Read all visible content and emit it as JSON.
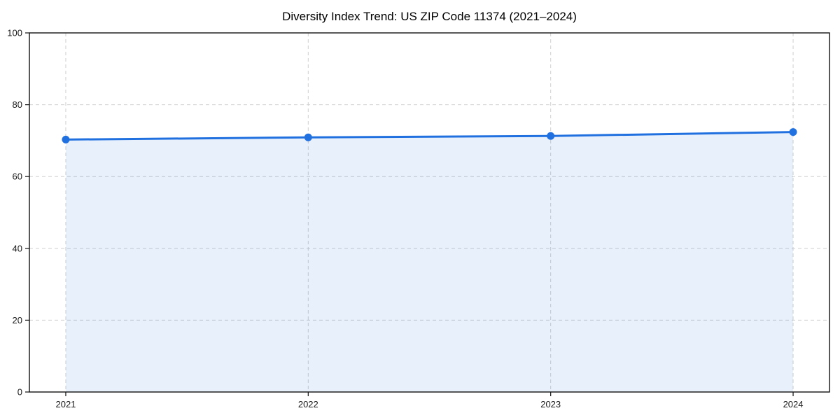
{
  "chart_data": {
    "type": "line",
    "title": "Diversity Index Trend: US ZIP Code 11374 (2021–2024)",
    "x": [
      "2021",
      "2022",
      "2023",
      "2024"
    ],
    "series": [
      {
        "name": "Diversity Index",
        "values": [
          70.3,
          70.9,
          71.3,
          72.4
        ]
      }
    ],
    "xlabel": "",
    "ylabel": "",
    "ylim": [
      0,
      100
    ],
    "yticks": [
      0,
      20,
      40,
      60,
      80,
      100
    ],
    "xticks": [
      "2021",
      "2022",
      "2023",
      "2024"
    ],
    "grid": "dashed",
    "legend": "none",
    "marker": "circle",
    "fill_under_line": true,
    "fill_opacity": 0.1,
    "line_color": "#2070e0",
    "grid_color": "#cfcfcf",
    "axis_color": "#111111",
    "text_color": "#1a1a1a",
    "background_color": "#ffffff"
  }
}
